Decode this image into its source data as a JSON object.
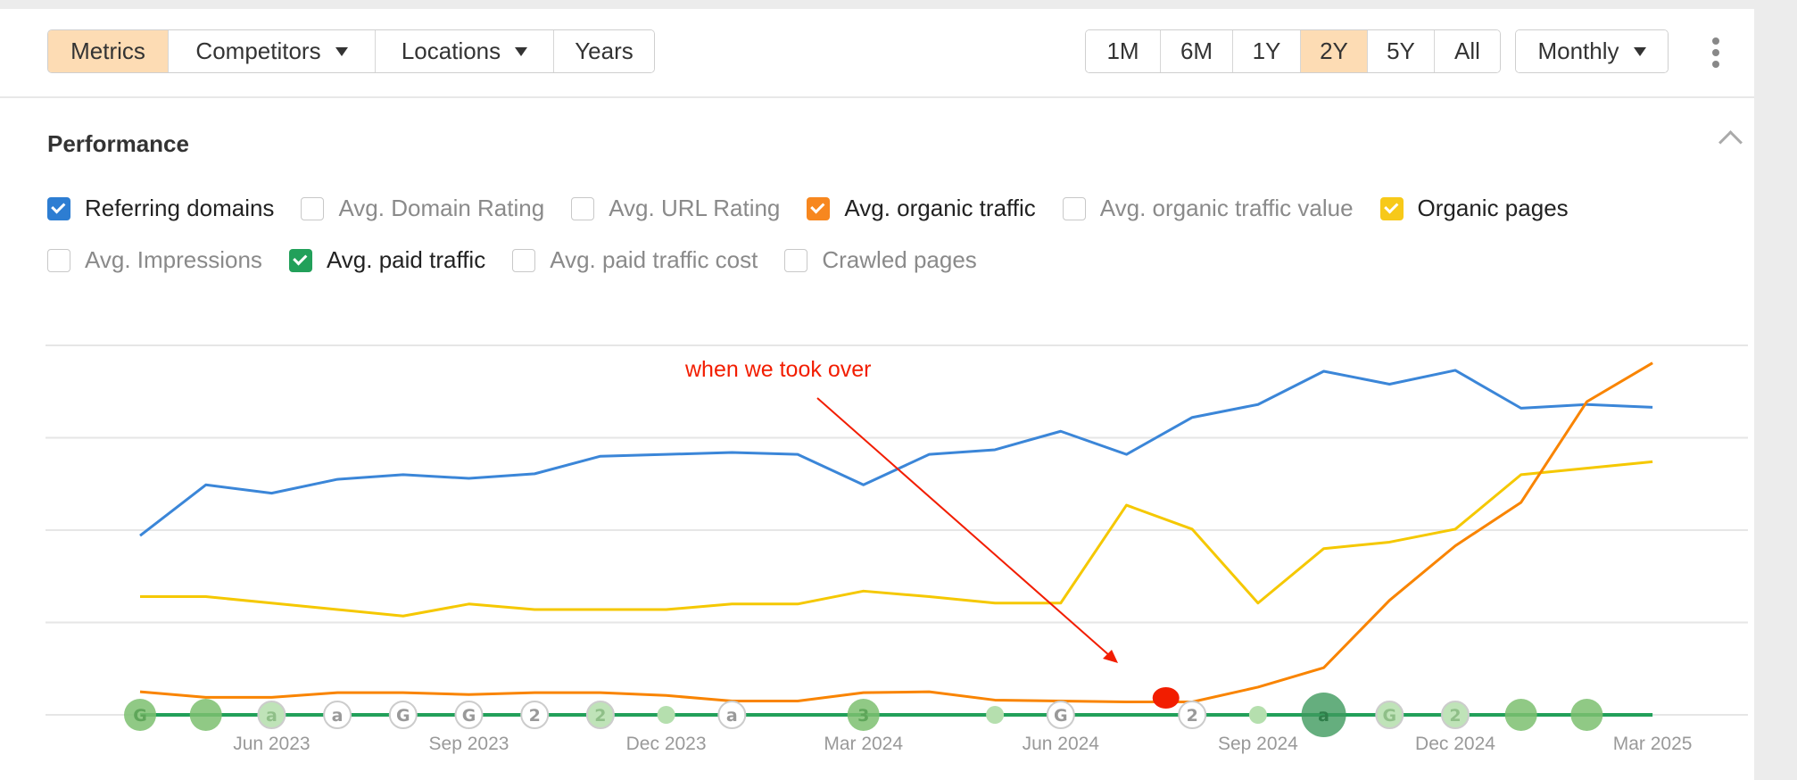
{
  "toolbar": {
    "left_buttons": [
      {
        "label": "Metrics",
        "active": true,
        "dropdown": false
      },
      {
        "label": "Competitors",
        "active": false,
        "dropdown": true
      },
      {
        "label": "Locations",
        "active": false,
        "dropdown": true
      },
      {
        "label": "Years",
        "active": false,
        "dropdown": false
      }
    ],
    "ranges": [
      {
        "label": "1M",
        "active": false
      },
      {
        "label": "6M",
        "active": false
      },
      {
        "label": "1Y",
        "active": false
      },
      {
        "label": "2Y",
        "active": true
      },
      {
        "label": "5Y",
        "active": false
      },
      {
        "label": "All",
        "active": false
      }
    ],
    "interval": "Monthly",
    "more_icon": "kebab-vertical-icon"
  },
  "panel": {
    "title": "Performance",
    "collapse_icon": "chevron-up-icon"
  },
  "metrics": [
    [
      {
        "label": "Referring domains",
        "checked": true,
        "color": "#2d7dd2"
      },
      {
        "label": "Avg. Domain Rating",
        "checked": false
      },
      {
        "label": "Avg. URL Rating",
        "checked": false
      },
      {
        "label": "Avg. organic traffic",
        "checked": true,
        "color": "#f7871f"
      },
      {
        "label": "Avg. organic traffic value",
        "checked": false
      },
      {
        "label": "Organic pages",
        "checked": true,
        "color": "#f7c919"
      }
    ],
    [
      {
        "label": "Avg. Impressions",
        "checked": false
      },
      {
        "label": "Avg. paid traffic",
        "checked": true,
        "color": "#22a05a"
      },
      {
        "label": "Avg. paid traffic cost",
        "checked": false
      },
      {
        "label": "Crawled pages",
        "checked": false
      }
    ]
  ],
  "annotation": {
    "text": "when we took over",
    "color": "#f21d00",
    "point_index": 15.6
  },
  "chart_data": {
    "type": "line",
    "ylim": [
      0,
      4
    ],
    "grid": true,
    "x_ticks": [
      {
        "index": 2,
        "label": "Jun 2023"
      },
      {
        "index": 5,
        "label": "Sep 2023"
      },
      {
        "index": 8,
        "label": "Dec 2023"
      },
      {
        "index": 11,
        "label": "Mar 2024"
      },
      {
        "index": 14,
        "label": "Jun 2024"
      },
      {
        "index": 17,
        "label": "Sep 2024"
      },
      {
        "index": 20,
        "label": "Dec 2024"
      },
      {
        "index": 23,
        "label": "Mar 2025"
      }
    ],
    "series": [
      {
        "name": "Referring domains",
        "color": "#3b86d8",
        "values": [
          1.94,
          2.49,
          2.4,
          2.55,
          2.6,
          2.56,
          2.61,
          2.8,
          2.82,
          2.84,
          2.82,
          2.49,
          2.82,
          2.87,
          3.07,
          2.82,
          3.22,
          3.36,
          3.72,
          3.58,
          3.73,
          3.32,
          3.36,
          3.33
        ]
      },
      {
        "name": "Organic pages",
        "color": "#f5c800",
        "values": [
          1.28,
          1.28,
          1.21,
          1.14,
          1.07,
          1.2,
          1.14,
          1.14,
          1.14,
          1.2,
          1.2,
          1.34,
          1.28,
          1.21,
          1.21,
          2.27,
          2.01,
          1.21,
          1.8,
          1.87,
          2.01,
          2.6,
          2.67,
          2.74
        ]
      },
      {
        "name": "Avg. organic traffic",
        "color": "#f98400",
        "values": [
          0.25,
          0.19,
          0.19,
          0.24,
          0.24,
          0.22,
          0.24,
          0.24,
          0.21,
          0.15,
          0.15,
          0.24,
          0.25,
          0.16,
          0.15,
          0.14,
          0.14,
          0.3,
          0.51,
          1.24,
          1.83,
          2.3,
          3.39,
          3.81
        ]
      },
      {
        "name": "Avg. paid traffic",
        "color": "#22a05a",
        "values": [
          0,
          0,
          0,
          0,
          0,
          0,
          0,
          0,
          0,
          0,
          0,
          0,
          0,
          0,
          0,
          0,
          0,
          0,
          0,
          0,
          0,
          0,
          0,
          0
        ]
      }
    ],
    "events": [
      {
        "index": 0,
        "kind": "filled",
        "letter": "G",
        "size": "m"
      },
      {
        "index": 1,
        "kind": "filled",
        "letter": "",
        "size": "m"
      },
      {
        "index": 2,
        "kind": "light-ring",
        "letter": "a"
      },
      {
        "index": 3,
        "kind": "ring",
        "letter": "a"
      },
      {
        "index": 4,
        "kind": "ring",
        "letter": "G"
      },
      {
        "index": 5,
        "kind": "ring",
        "letter": "G"
      },
      {
        "index": 6,
        "kind": "ring",
        "letter": "2"
      },
      {
        "index": 7,
        "kind": "light-ring",
        "letter": "2"
      },
      {
        "index": 8,
        "kind": "dot",
        "letter": ""
      },
      {
        "index": 9,
        "kind": "ring",
        "letter": "a"
      },
      {
        "index": 11,
        "kind": "filled",
        "letter": "3",
        "size": "m"
      },
      {
        "index": 13,
        "kind": "dot",
        "letter": ""
      },
      {
        "index": 14,
        "kind": "ring",
        "letter": "G"
      },
      {
        "index": 16,
        "kind": "ring",
        "letter": "2"
      },
      {
        "index": 17,
        "kind": "dot",
        "letter": ""
      },
      {
        "index": 18,
        "kind": "dark",
        "letter": "a",
        "size": "l"
      },
      {
        "index": 19,
        "kind": "light-ring",
        "letter": "G"
      },
      {
        "index": 20,
        "kind": "light-ring",
        "letter": "2"
      },
      {
        "index": 21,
        "kind": "filled",
        "letter": "",
        "size": "m"
      },
      {
        "index": 22,
        "kind": "filled",
        "letter": "",
        "size": "m"
      }
    ]
  }
}
